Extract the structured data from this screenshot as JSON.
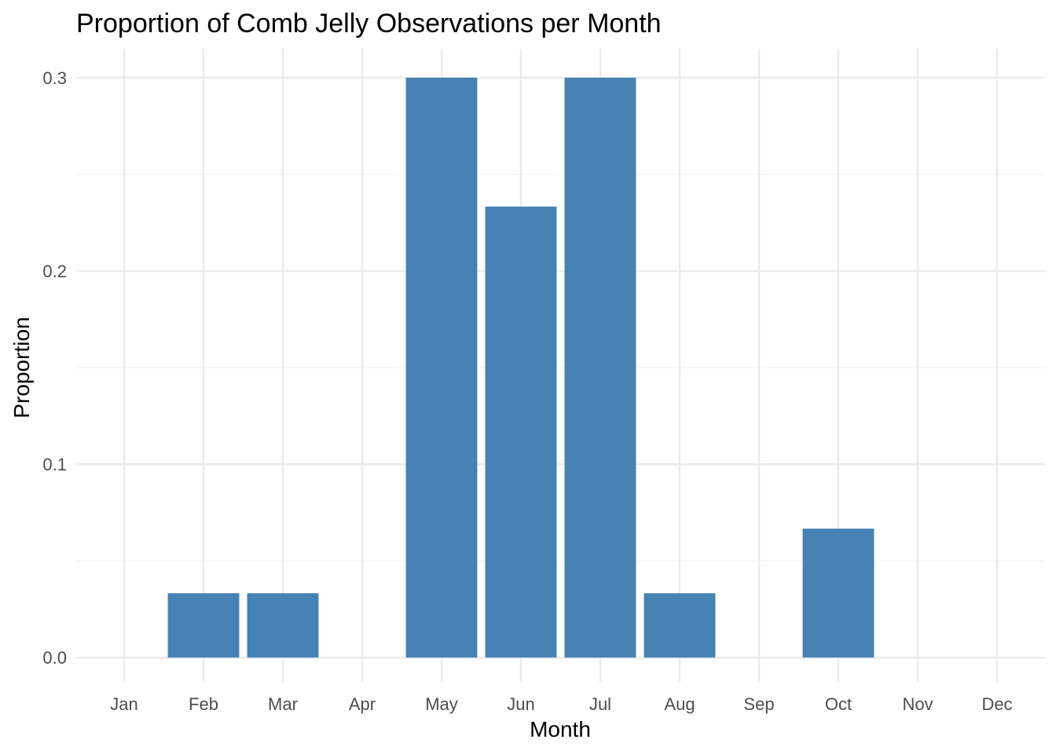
{
  "chart_data": {
    "type": "bar",
    "title": "Proportion of Comb Jelly Observations per Month",
    "xlabel": "Month",
    "ylabel": "Proportion",
    "categories": [
      "Jan",
      "Feb",
      "Mar",
      "Apr",
      "May",
      "Jun",
      "Jul",
      "Aug",
      "Sep",
      "Oct",
      "Nov",
      "Dec"
    ],
    "values": [
      0,
      0.0333,
      0.0333,
      0,
      0.3,
      0.2333,
      0.3,
      0.0333,
      0,
      0.0667,
      0,
      0
    ],
    "ylim": [
      -0.0125,
      0.315
    ],
    "yticks": [
      0.0,
      0.1,
      0.2,
      0.3
    ],
    "ytick_labels": [
      "0.0",
      "0.1",
      "0.2",
      "0.3"
    ],
    "yminor": [
      0.05,
      0.15,
      0.25
    ],
    "grid": true,
    "legend": "none",
    "colors": {
      "bar": "#4682b4",
      "grid_major": "#ebebeb",
      "grid_minor": "#f5f5f5",
      "tick_text": "#4d4d4d",
      "text": "#000000",
      "background": "#ffffff"
    }
  }
}
